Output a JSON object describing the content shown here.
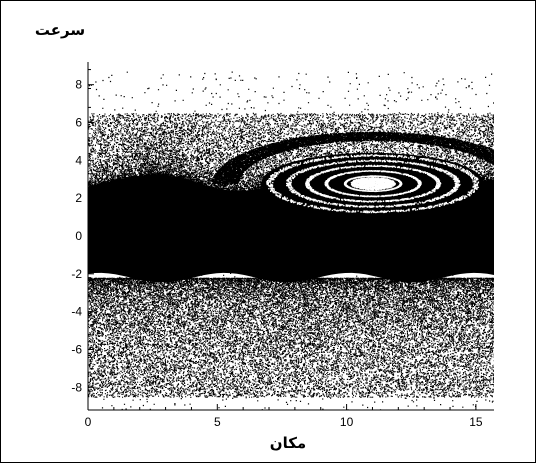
{
  "chart_data": {
    "type": "scatter",
    "title": "",
    "xlabel": "مکان",
    "ylabel": "سرعت",
    "xlim": [
      0,
      15.7
    ],
    "ylim": [
      -9.2,
      9.2
    ],
    "x_ticks": [
      0,
      5,
      10,
      15
    ],
    "y_ticks": [
      -8,
      -6,
      -4,
      -2,
      0,
      2,
      4,
      6,
      8
    ],
    "grid": false,
    "legend": "none",
    "point_color": "#000000",
    "background": "#ffffff",
    "series": [
      {
        "distribution": {
          "dense_band_y": [
            -2.2,
            2.6
          ],
          "sparse_halo_y": [
            -8.5,
            6.5
          ],
          "vortex_center": [
            11,
            2.8
          ],
          "vortex_semi_axes": [
            4.3,
            1.6
          ]
        }
      }
    ]
  }
}
